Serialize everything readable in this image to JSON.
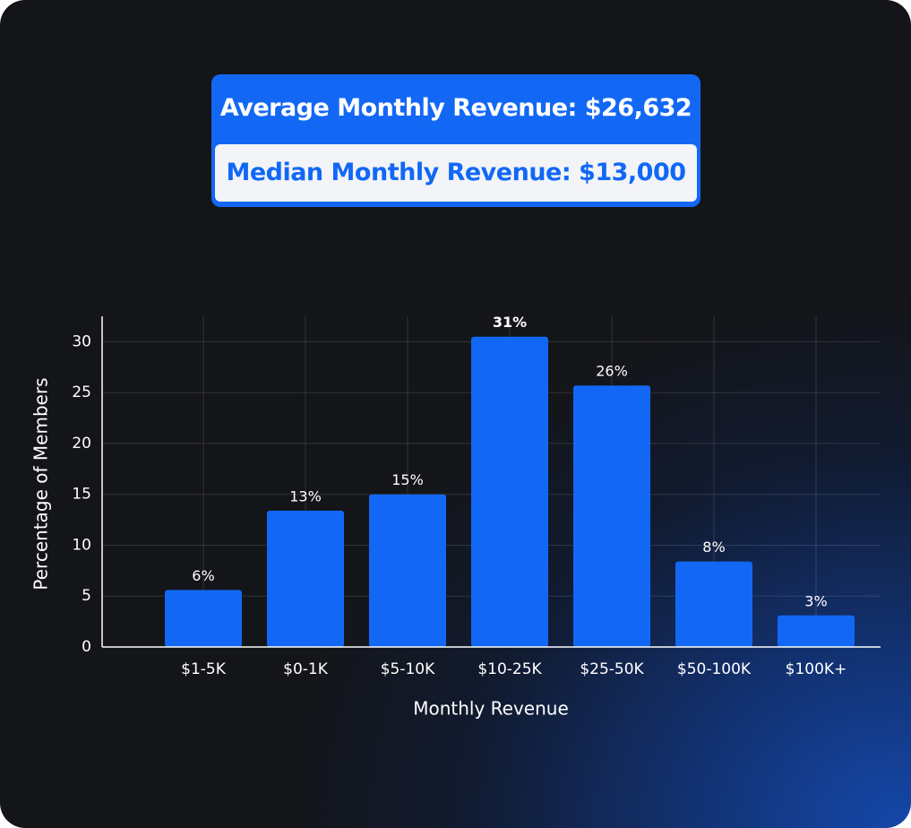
{
  "stats": {
    "average": "Average Monthly Revenue: $26,632",
    "median": "Median Monthly Revenue: $13,000"
  },
  "chart_data": {
    "type": "bar",
    "x_label": "Monthly Revenue",
    "y_label": "Percentage of Members",
    "categories": [
      "$1-5K",
      "$0-1K",
      "$5-10K",
      "$10-25K",
      "$25-50K",
      "$50-100K",
      "$100K+"
    ],
    "values": [
      5.6,
      13.4,
      15,
      30.5,
      25.7,
      8.4,
      3.1
    ],
    "value_labels": [
      "6%",
      "13%",
      "15%",
      "31%",
      "26%",
      "8%",
      "3%"
    ],
    "color": "#1268f5",
    "ylim": [
      0,
      32.5
    ],
    "yticks": [
      0,
      5,
      10,
      15,
      20,
      25,
      30
    ],
    "grid": true
  }
}
